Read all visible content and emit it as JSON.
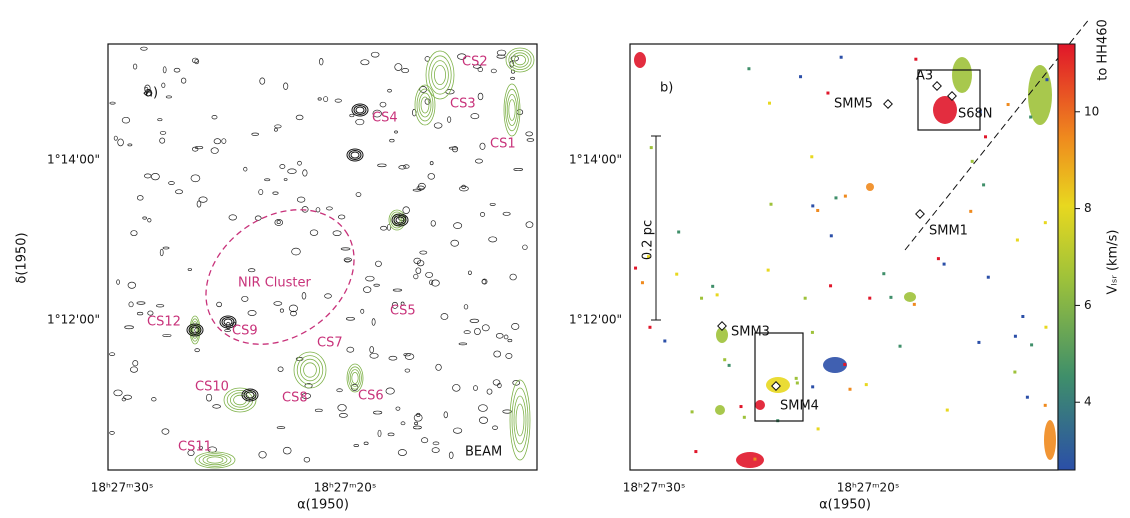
{
  "panels": [
    {
      "label": "a)",
      "xlabel": "α(1950)",
      "ylabel": "δ(1950)",
      "xticks": [
        "18ʰ27ᵐ30ˢ",
        "18ʰ27ᵐ20ˢ"
      ],
      "yticks": [
        "1°14'00\"",
        "1°12'00\""
      ],
      "annotations": [
        "CS2",
        "CS3",
        "CS4",
        "CS1",
        "NIR Cluster",
        "CS5",
        "CS12",
        "CS9",
        "CS7",
        "CS10",
        "CS6",
        "CS8",
        "CS11",
        "BEAM"
      ]
    },
    {
      "label": "b)",
      "xlabel": "α(1950)",
      "xticks": [
        "18ʰ27ᵐ30ˢ",
        "18ʰ27ᵐ20ˢ"
      ],
      "yticks": [
        "1°14'00\"",
        "1°12'00\""
      ],
      "annotations": [
        "A3",
        "SMM5",
        "S68N",
        "SMM1",
        "0.2 pc",
        "SMM3",
        "SMM4",
        "to HH460"
      ]
    }
  ],
  "colorbar": {
    "label": "Vₗₛᵣ (km/s)",
    "ticks": [
      4,
      6,
      8,
      10
    ],
    "range": [
      2.6,
      11.4
    ]
  }
}
